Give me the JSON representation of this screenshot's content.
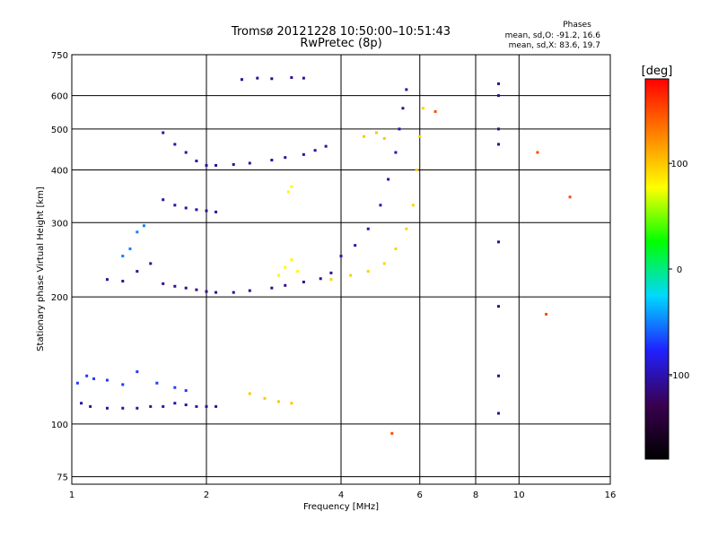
{
  "chart_data": {
    "type": "scatter",
    "title": "Tromsø 20121228 10:50:00–10:51:43",
    "subtitle": "RwPretec (8p)",
    "stats": {
      "heading": "Phases",
      "line_o": "mean, sd,O: -91.2, 16.6",
      "line_x": "mean, sd,X: 83.6, 19.7"
    },
    "xlabel": "Frequency [MHz]",
    "ylabel": "Stationary phase Virtual Height [km]",
    "xscale": "log2",
    "yscale": "log",
    "xlim": [
      1,
      16
    ],
    "ylim": [
      72,
      750
    ],
    "x_ticks": [
      1,
      2,
      4,
      6,
      8,
      10,
      16
    ],
    "x_tick_labels": [
      "1",
      "2",
      "4",
      "6",
      "8",
      "10",
      "16"
    ],
    "y_ticks": [
      75,
      100,
      200,
      300,
      400,
      500,
      600,
      750
    ],
    "y_tick_labels": [
      "75",
      "100",
      "200",
      "300",
      "400",
      "500",
      "600",
      "750"
    ],
    "grid": true,
    "colorbar": {
      "label": "[deg]",
      "range": [
        -180,
        180
      ],
      "ticks": [
        100,
        0,
        -100
      ],
      "tick_labels": [
        "100",
        "0",
        "-100"
      ],
      "colors": [
        "#000000",
        "#3a0050",
        "#2020ff",
        "#00d8ff",
        "#00ff00",
        "#ffff00",
        "#ff8000",
        "#ff0000"
      ]
    },
    "series": [
      {
        "points": [
          [
            1.05,
            112
          ],
          [
            1.1,
            110
          ],
          [
            1.2,
            109
          ],
          [
            1.3,
            109
          ],
          [
            1.4,
            109
          ],
          [
            1.5,
            110
          ],
          [
            1.6,
            110
          ],
          [
            1.7,
            112
          ],
          [
            1.8,
            111
          ],
          [
            1.9,
            110
          ],
          [
            2.0,
            110
          ],
          [
            2.1,
            110
          ]
        ],
        "phase": -105
      },
      {
        "points": [
          [
            1.03,
            125
          ],
          [
            1.08,
            130
          ],
          [
            1.12,
            128
          ],
          [
            1.2,
            127
          ],
          [
            1.3,
            124
          ],
          [
            1.4,
            133
          ],
          [
            1.55,
            125
          ],
          [
            1.7,
            122
          ],
          [
            1.8,
            120
          ]
        ],
        "phase": -70
      },
      {
        "points": [
          [
            1.2,
            220
          ],
          [
            1.3,
            218
          ],
          [
            1.4,
            230
          ],
          [
            1.5,
            240
          ],
          [
            1.6,
            215
          ],
          [
            1.7,
            212
          ],
          [
            1.8,
            210
          ],
          [
            1.9,
            208
          ],
          [
            2.0,
            206
          ],
          [
            2.1,
            205
          ],
          [
            2.3,
            205
          ],
          [
            2.5,
            207
          ],
          [
            2.8,
            210
          ],
          [
            3.0,
            213
          ],
          [
            3.3,
            217
          ],
          [
            3.6,
            221
          ],
          [
            3.8,
            228
          ]
        ],
        "phase": -110
      },
      {
        "points": [
          [
            1.3,
            250
          ],
          [
            1.35,
            260
          ],
          [
            1.4,
            285
          ],
          [
            1.45,
            295
          ]
        ],
        "phase": -50
      },
      {
        "points": [
          [
            1.6,
            340
          ],
          [
            1.7,
            330
          ],
          [
            1.8,
            325
          ],
          [
            1.9,
            322
          ],
          [
            2.0,
            320
          ],
          [
            2.1,
            318
          ]
        ],
        "phase": -105
      },
      {
        "points": [
          [
            1.6,
            490
          ],
          [
            1.7,
            460
          ],
          [
            1.8,
            440
          ],
          [
            1.9,
            420
          ],
          [
            2.0,
            410
          ],
          [
            2.1,
            410
          ],
          [
            2.3,
            412
          ],
          [
            2.5,
            415
          ],
          [
            2.8,
            422
          ],
          [
            3.0,
            428
          ],
          [
            3.3,
            435
          ],
          [
            3.5,
            445
          ],
          [
            3.7,
            455
          ]
        ],
        "phase": -105
      },
      {
        "points": [
          [
            4.0,
            250
          ],
          [
            4.3,
            265
          ],
          [
            4.6,
            290
          ],
          [
            4.9,
            330
          ],
          [
            5.1,
            380
          ],
          [
            5.3,
            440
          ],
          [
            5.4,
            500
          ],
          [
            5.5,
            560
          ],
          [
            5.6,
            620
          ]
        ],
        "phase": -100
      },
      {
        "points": [
          [
            3.8,
            220
          ],
          [
            4.2,
            225
          ],
          [
            4.6,
            230
          ],
          [
            5.0,
            240
          ],
          [
            5.3,
            260
          ],
          [
            5.6,
            290
          ],
          [
            5.8,
            330
          ],
          [
            5.9,
            400
          ],
          [
            6.0,
            480
          ],
          [
            6.1,
            560
          ]
        ],
        "phase": 95
      },
      {
        "points": [
          [
            2.5,
            118
          ],
          [
            2.7,
            115
          ],
          [
            2.9,
            113
          ],
          [
            3.1,
            112
          ]
        ],
        "phase": 100
      },
      {
        "points": [
          [
            2.9,
            225
          ],
          [
            3.0,
            235
          ],
          [
            3.1,
            245
          ],
          [
            3.2,
            230
          ],
          [
            3.05,
            355
          ],
          [
            3.1,
            365
          ]
        ],
        "phase": 80
      },
      {
        "points": [
          [
            4.5,
            480
          ],
          [
            4.8,
            490
          ],
          [
            5.0,
            475
          ]
        ],
        "phase": 100
      },
      {
        "points": [
          [
            9.0,
            640
          ],
          [
            9.0,
            600
          ],
          [
            9.0,
            500
          ],
          [
            9.0,
            460
          ],
          [
            9.0,
            270
          ],
          [
            9.0,
            190
          ],
          [
            9.0,
            130
          ],
          [
            9.0,
            106
          ]
        ],
        "phase": -110
      },
      {
        "points": [
          [
            2.4,
            655
          ],
          [
            2.6,
            660
          ],
          [
            2.8,
            658
          ],
          [
            3.1,
            662
          ],
          [
            3.3,
            660
          ]
        ],
        "phase": -110
      },
      {
        "points": [
          [
            11.0,
            440
          ],
          [
            13.0,
            345
          ],
          [
            5.2,
            95
          ],
          [
            6.5,
            550
          ],
          [
            11.5,
            182
          ]
        ],
        "phase": 150
      }
    ]
  }
}
